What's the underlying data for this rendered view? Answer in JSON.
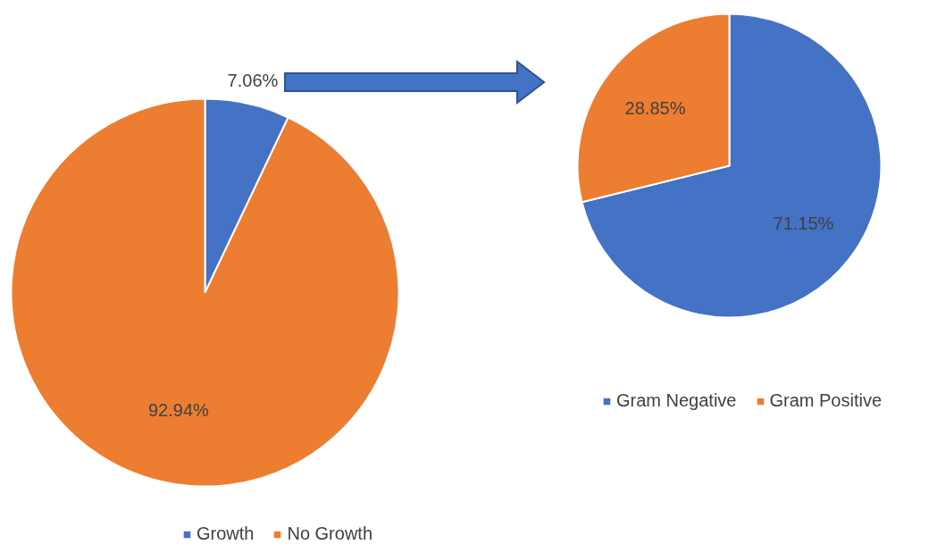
{
  "chart_data": [
    {
      "type": "pie",
      "categories": [
        "Growth",
        "No Growth"
      ],
      "values": [
        7.06,
        92.94
      ],
      "colors": [
        "#4472c4",
        "#ed7d31"
      ],
      "value_labels": [
        "7.06%",
        "92.94%"
      ],
      "legend": "bottom"
    },
    {
      "type": "pie",
      "categories": [
        "Gram Negative",
        "Gram Positive"
      ],
      "values": [
        71.15,
        28.85
      ],
      "colors": [
        "#4472c4",
        "#ed7d31"
      ],
      "value_labels": [
        "71.15%",
        "28.85%"
      ],
      "legend": "bottom"
    }
  ]
}
